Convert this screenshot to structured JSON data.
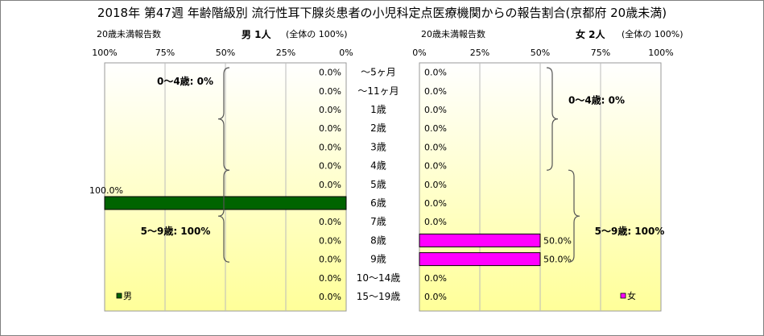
{
  "title": "2018年 第47週 年齢階級別 流行性耳下腺炎患者の小児科定点医療機関からの報告割合(京都府 20歳未満)",
  "header_left": {
    "under20_label": "20歳未満報告数",
    "total_label": "男 1人",
    "share_label": "(全体の 100%)"
  },
  "header_right": {
    "under20_label": "20歳未満報告数",
    "total_label": "女 2人",
    "share_label": "(全体の 100%)"
  },
  "colors": {
    "male": "#006400",
    "female": "#ff00ff",
    "plot_bg_top": "#ffffff",
    "plot_bg_bottom": "#ffff99"
  },
  "chart_data": [
    {
      "type": "bar",
      "orientation": "horizontal",
      "direction": "right-to-left",
      "categories": [
        "～5ヶ月",
        "～11ヶ月",
        "1歳",
        "2歳",
        "3歳",
        "4歳",
        "5歳",
        "6歳",
        "7歳",
        "8歳",
        "9歳",
        "10～14歳",
        "15～19歳"
      ],
      "series": [
        {
          "name": "男",
          "values": [
            0,
            0,
            0,
            0,
            0,
            0,
            0,
            100,
            0,
            0,
            0,
            0,
            0
          ],
          "labels": [
            "0.0%",
            "0.0%",
            "0.0%",
            "0.0%",
            "0.0%",
            "0.0%",
            "0.0%",
            "100.0%",
            "0.0%",
            "0.0%",
            "0.0%",
            "0.0%",
            "0.0%"
          ]
        }
      ],
      "xlim": [
        0,
        100
      ],
      "xticks": [
        "100%",
        "75%",
        "50%",
        "25%",
        "0%"
      ],
      "legend": "bottom-left",
      "grid": true,
      "annotations": [
        "0～4歳: 0%",
        "5～9歳: 100%"
      ]
    },
    {
      "type": "bar",
      "orientation": "horizontal",
      "direction": "left-to-right",
      "categories": [
        "～5ヶ月",
        "～11ヶ月",
        "1歳",
        "2歳",
        "3歳",
        "4歳",
        "5歳",
        "6歳",
        "7歳",
        "8歳",
        "9歳",
        "10～14歳",
        "15～19歳"
      ],
      "series": [
        {
          "name": "女",
          "values": [
            0,
            0,
            0,
            0,
            0,
            0,
            0,
            0,
            0,
            50,
            50,
            0,
            0
          ],
          "labels": [
            "0.0%",
            "0.0%",
            "0.0%",
            "0.0%",
            "0.0%",
            "0.0%",
            "0.0%",
            "0.0%",
            "0.0%",
            "50.0%",
            "50.0%",
            "0.0%",
            "0.0%"
          ]
        }
      ],
      "xlim": [
        0,
        100
      ],
      "xticks": [
        "0%",
        "25%",
        "50%",
        "75%",
        "100%"
      ],
      "legend": "bottom-right",
      "grid": true,
      "annotations": [
        "0～4歳: 0%",
        "5～9歳: 100%"
      ]
    }
  ]
}
